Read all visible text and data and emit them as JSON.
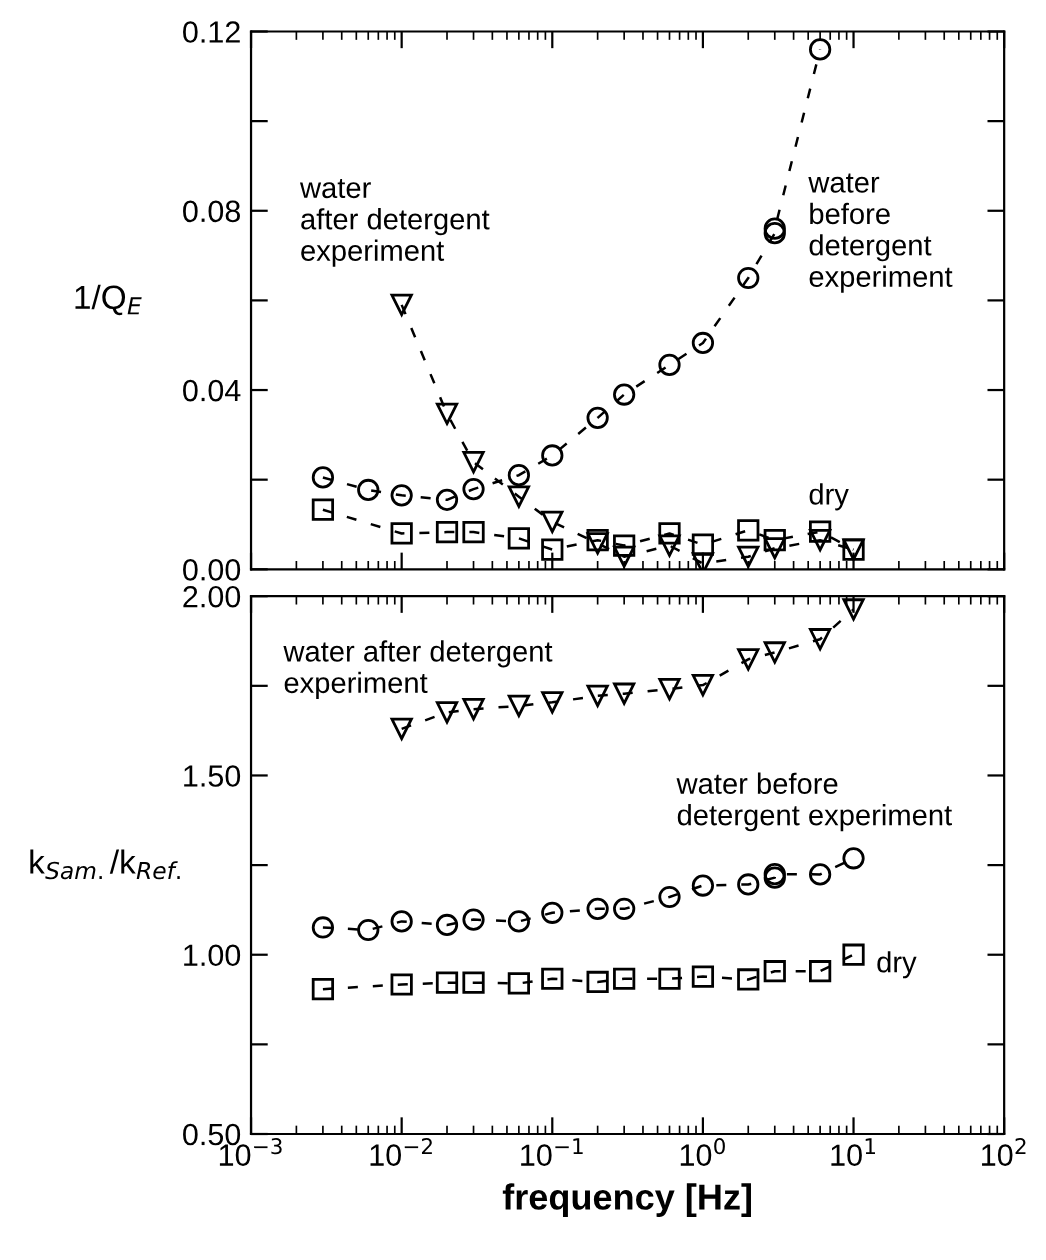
{
  "chart_data": [
    {
      "type": "line",
      "ylabel": "1/Q$_{E}$",
      "log": "x",
      "tick_labels": "y",
      "line_style": "dashed",
      "grid": false,
      "legend": false,
      "xlim": [
        0.001,
        100
      ],
      "xticks": [
        0.001,
        0.01,
        0.1,
        1,
        10,
        100
      ],
      "ylim": [
        0,
        0.12
      ],
      "yticks": [
        {
          "value": 0,
          "label": "0.00"
        },
        {
          "value": 0.02,
          "label": null
        },
        {
          "value": 0.04,
          "label": "0.04"
        },
        {
          "value": 0.06,
          "label": null
        },
        {
          "value": 0.08,
          "label": "0.08"
        },
        {
          "value": 0.1,
          "label": null
        },
        {
          "value": 0.12,
          "label": "0.12"
        }
      ],
      "series": [
        {
          "color": "#000000",
          "marker": "circle",
          "x": [
            0.003,
            0.006,
            0.01,
            0.02,
            0.03,
            0.06,
            0.1,
            0.2,
            0.3,
            0.6,
            1,
            2,
            3,
            3,
            6
          ],
          "values": [
            0.0205,
            0.0177,
            0.0165,
            0.0155,
            0.0179,
            0.021,
            0.0254,
            0.0338,
            0.039,
            0.0456,
            0.0505,
            0.065,
            0.075,
            0.076,
            0.116
          ]
        },
        {
          "color": "#000000",
          "marker": "square",
          "x": [
            0.003,
            0.01,
            0.02,
            0.03,
            0.06,
            0.1,
            0.2,
            0.3,
            0.6,
            1,
            2,
            3,
            6,
            10
          ],
          "values": [
            0.0133,
            0.008,
            0.0083,
            0.0083,
            0.0069,
            0.0044,
            0.0065,
            0.0053,
            0.008,
            0.0055,
            0.0087,
            0.0065,
            0.0084,
            0.0044
          ]
        },
        {
          "color": "#000000",
          "marker": "triangle",
          "x": [
            0.01,
            0.02,
            0.03,
            0.06,
            0.1,
            0.2,
            0.3,
            0.6,
            1,
            2,
            3,
            6,
            10
          ],
          "values": [
            0.059,
            0.0347,
            0.0239,
            0.0162,
            0.0106,
            0.0058,
            0.0028,
            0.0053,
            0.0013,
            0.0028,
            0.0047,
            0.0065,
            0.0044
          ]
        }
      ],
      "annotations": [
        "water\nafter detergent\nexperiment",
        "water\nbefore\ndetergent\nexperiment",
        "dry"
      ]
    },
    {
      "type": "line",
      "xlabel": "frequency [Hz]",
      "ylabel": "k$_{Sam.}$/k$_{Ref.}$",
      "log": "x",
      "line_style": "dashed",
      "grid": false,
      "legend": false,
      "xlim": [
        0.001,
        100
      ],
      "xticks": [
        {
          "value": 0.001,
          "label": "10$^{−3}$"
        },
        {
          "value": 0.01,
          "label": "10$^{−2}$"
        },
        {
          "value": 0.1,
          "label": "10$^{−1}$"
        },
        {
          "value": 1,
          "label": "10$^{0}$"
        },
        {
          "value": 10,
          "label": "10$^{1}$"
        },
        {
          "value": 100,
          "label": "10$^{2}$"
        }
      ],
      "ylim": [
        0.5,
        2.0
      ],
      "yticks": [
        {
          "value": 0.5,
          "label": "0.50"
        },
        {
          "value": 0.75,
          "label": null
        },
        {
          "value": 1.0,
          "label": "1.00"
        },
        {
          "value": 1.25,
          "label": null
        },
        {
          "value": 1.5,
          "label": "1.50"
        },
        {
          "value": 1.75,
          "label": null
        },
        {
          "value": 2.0,
          "label": "2.00"
        }
      ],
      "series": [
        {
          "color": "#000000",
          "marker": "triangle",
          "x": [
            0.01,
            0.02,
            0.03,
            0.06,
            0.1,
            0.2,
            0.3,
            0.6,
            1,
            2,
            3,
            6,
            10
          ],
          "values": [
            1.63,
            1.676,
            1.685,
            1.694,
            1.704,
            1.722,
            1.728,
            1.741,
            1.752,
            1.824,
            1.843,
            1.88,
            1.963
          ]
        },
        {
          "color": "#000000",
          "marker": "circle",
          "x": [
            0.003,
            0.006,
            0.01,
            0.02,
            0.03,
            0.06,
            0.1,
            0.2,
            0.3,
            0.6,
            1,
            2,
            3,
            3,
            6,
            10
          ],
          "values": [
            1.076,
            1.069,
            1.093,
            1.083,
            1.098,
            1.093,
            1.117,
            1.128,
            1.128,
            1.161,
            1.193,
            1.196,
            1.215,
            1.225,
            1.224,
            1.269
          ]
        },
        {
          "color": "#000000",
          "marker": "square",
          "x": [
            0.003,
            0.01,
            0.02,
            0.03,
            0.06,
            0.1,
            0.2,
            0.3,
            0.6,
            1,
            2,
            3,
            6,
            10
          ],
          "values": [
            0.904,
            0.917,
            0.922,
            0.922,
            0.92,
            0.933,
            0.924,
            0.933,
            0.933,
            0.939,
            0.931,
            0.954,
            0.954,
            1.0
          ]
        }
      ],
      "annotations": [
        "water after detergent\nexperiment",
        "water before\ndetergent experiment",
        "dry"
      ]
    }
  ]
}
